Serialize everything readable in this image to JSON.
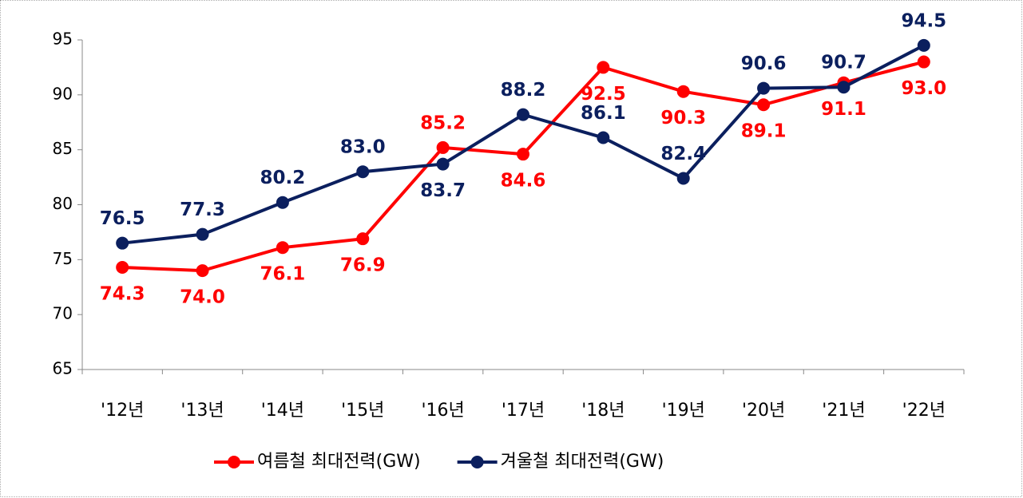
{
  "chart_data": {
    "type": "line",
    "categories": [
      "'12년",
      "'13년",
      "'14년",
      "'15년",
      "'16년",
      "'17년",
      "'18년",
      "'19년",
      "'20년",
      "'21년",
      "'22년"
    ],
    "series": [
      {
        "name": "여름철 최대전력(GW)",
        "color": "#ff0000",
        "values": [
          74.3,
          74.0,
          76.1,
          76.9,
          85.2,
          84.6,
          92.5,
          90.3,
          89.1,
          91.1,
          93.0
        ],
        "value_labels": [
          "74.3",
          "74.0",
          "76.1",
          "76.9",
          "85.2",
          "84.6",
          "92.5",
          "90.3",
          "89.1",
          "91.1",
          "93.0"
        ]
      },
      {
        "name": "겨울철 최대전력(GW)",
        "color": "#0b1f5e",
        "values": [
          76.5,
          77.3,
          80.2,
          83.0,
          83.7,
          88.2,
          86.1,
          82.4,
          90.6,
          90.7,
          94.5
        ],
        "value_labels": [
          "76.5",
          "77.3",
          "80.2",
          "83.0",
          "83.7",
          "88.2",
          "86.1",
          "82.4",
          "90.6",
          "90.7",
          "94.5"
        ]
      }
    ],
    "ylim": [
      65,
      95
    ],
    "yticks": [
      65,
      70,
      75,
      80,
      85,
      90,
      95
    ],
    "legend": "bottom"
  }
}
